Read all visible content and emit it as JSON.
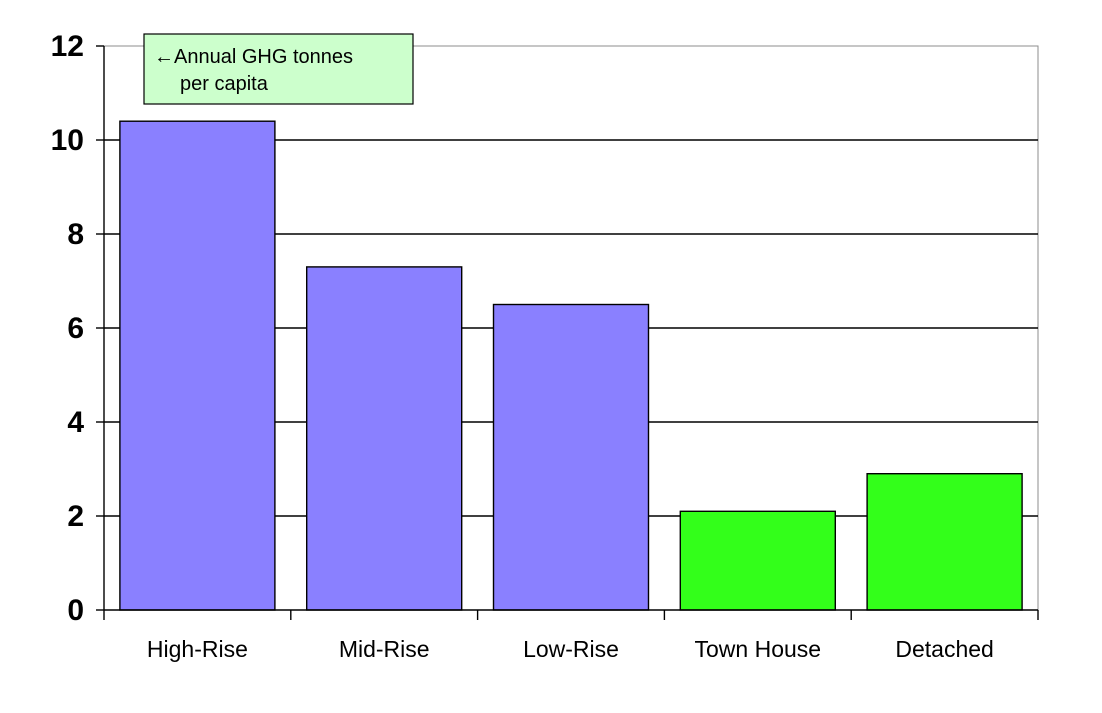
{
  "chart_data": {
    "type": "bar",
    "categories": [
      "High-Rise",
      "Mid-Rise",
      "Low-Rise",
      "Town House",
      "Detached"
    ],
    "values": [
      10.4,
      7.3,
      6.5,
      2.1,
      2.9
    ],
    "bar_colors": [
      "#8a80ff",
      "#8a80ff",
      "#8a80ff",
      "#33ff1a",
      "#33ff1a"
    ],
    "ylim": [
      0,
      12
    ],
    "yticks": [
      0,
      2,
      4,
      6,
      8,
      10,
      12
    ],
    "grid": true,
    "annotation": {
      "line1": "←Annual GHG tonnes",
      "line2": "per capita",
      "background": "#ccffcc",
      "placement": "top-left"
    }
  }
}
